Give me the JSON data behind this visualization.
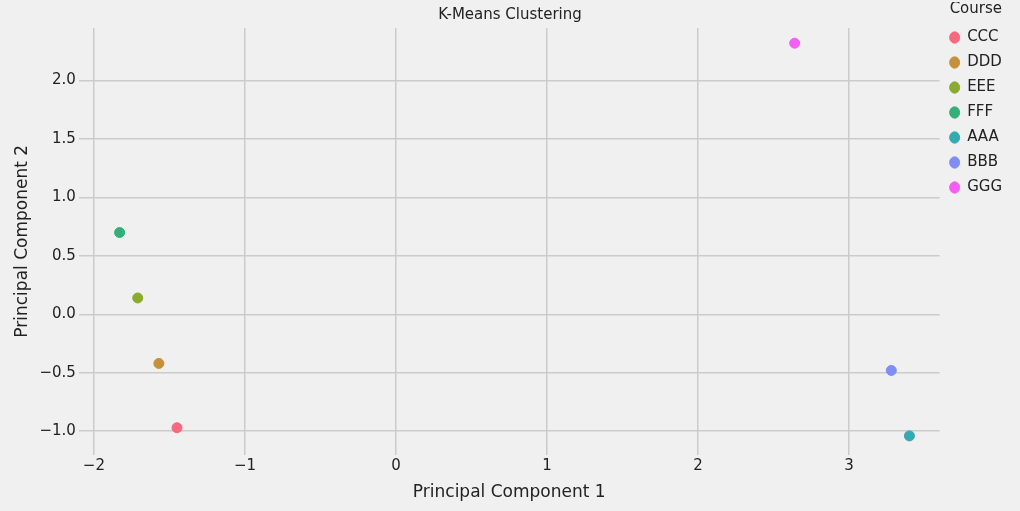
{
  "chart_data": {
    "type": "scatter",
    "title": "K-Means Clustering",
    "xlabel": "Principal Component 1",
    "ylabel": "Principal Component 2",
    "legend_title": "Course",
    "series": [
      {
        "name": "CCC",
        "color": "#f7697e",
        "x": [
          -1.45
        ],
        "values": [
          -0.97
        ]
      },
      {
        "name": "DDD",
        "color": "#c4913a",
        "x": [
          -1.57
        ],
        "values": [
          -0.42
        ]
      },
      {
        "name": "EEE",
        "color": "#8aab2f",
        "x": [
          -1.71
        ],
        "values": [
          0.14
        ]
      },
      {
        "name": "FFF",
        "color": "#34af7a",
        "x": [
          -1.83
        ],
        "values": [
          0.7
        ]
      },
      {
        "name": "AAA",
        "color": "#35aab0",
        "x": [
          3.4
        ],
        "values": [
          -1.04
        ]
      },
      {
        "name": "BBB",
        "color": "#7f8ef5",
        "x": [
          3.28
        ],
        "values": [
          -0.48
        ]
      },
      {
        "name": "GGG",
        "color": "#f35ff0",
        "x": [
          2.64
        ],
        "values": [
          2.32
        ]
      }
    ],
    "xlim": [
      -2.1,
      3.6
    ],
    "ylim": [
      -1.2,
      2.45
    ],
    "xticks": [
      {
        "value": -2,
        "label": "−2"
      },
      {
        "value": -1,
        "label": "−1"
      },
      0,
      1,
      2,
      3
    ],
    "yticks": [
      {
        "value": -1,
        "label": "−1.0"
      },
      {
        "value": -0.5,
        "label": "−0.5"
      },
      {
        "value": 0,
        "label": "0.0"
      },
      {
        "value": 0.5,
        "label": "0.5"
      },
      {
        "value": 1,
        "label": "1.0"
      },
      {
        "value": 1.5,
        "label": "1.5"
      },
      {
        "value": 2,
        "label": "2.0"
      }
    ],
    "grid": true,
    "legend": "top right",
    "marker": "circle"
  }
}
